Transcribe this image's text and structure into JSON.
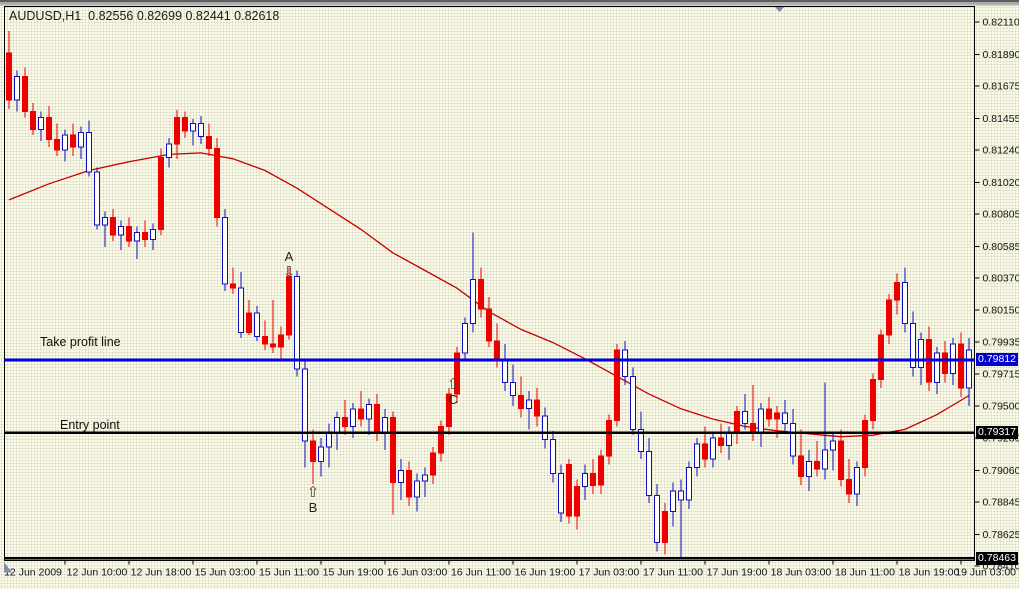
{
  "chart": {
    "title": "AUDUSD,H1  0.82556 0.82699 0.82441 0.82618"
  },
  "chart_data": {
    "type": "candlestick",
    "symbol": "AUDUSD",
    "timeframe": "H1",
    "ohlc_display": {
      "open": "0.82556",
      "high": "0.82699",
      "low": "0.82441",
      "close": "0.82618"
    },
    "y_axis": {
      "min": 0.7841,
      "max": 0.8211,
      "labels": [
        "0.82110",
        "0.81890",
        "0.81675",
        "0.81455",
        "0.81240",
        "0.81020",
        "0.80805",
        "0.80585",
        "0.80370",
        "0.80150",
        "0.79935",
        "0.79715",
        "0.79500",
        "0.79280",
        "0.79060",
        "0.78845",
        "0.78625",
        "0.78410"
      ]
    },
    "x_axis": {
      "labels": [
        "12 Jun 2009",
        "12 Jun 10:00",
        "12 Jun 18:00",
        "15 Jun 03:00",
        "15 Jun 11:00",
        "15 Jun 19:00",
        "16 Jun 03:00",
        "16 Jun 11:00",
        "16 Jun 19:00",
        "17 Jun 03:00",
        "17 Jun 11:00",
        "17 Jun 19:00",
        "18 Jun 03:00",
        "18 Jun 11:00",
        "18 Jun 19:00",
        "19 Jun 03:00"
      ]
    },
    "hlines": [
      {
        "label": "Take profit line",
        "price": 0.79812,
        "badge": "0.79812",
        "color": "#0000e0",
        "width": 3
      },
      {
        "label": "Entry point",
        "price": 0.79317,
        "badge": "0.79317",
        "color": "#000000",
        "width": 2.5
      },
      {
        "label": "",
        "price": 0.78463,
        "badge": "0.78463",
        "color": "#000000",
        "width": 2.5
      }
    ],
    "annotations": [
      {
        "letter": "A",
        "direction": "down",
        "glyph": "⇩",
        "candle_index": 35,
        "price": 0.8041
      },
      {
        "letter": "B",
        "direction": "up",
        "glyph": "⇧",
        "candle_index": 38,
        "price": 0.78905
      },
      {
        "letter": "C",
        "direction": "up",
        "glyph": "⇧",
        "candle_index": 55.5,
        "price": 0.79645
      }
    ],
    "ma": {
      "name": "moving average",
      "points": [
        [
          0,
          0.809
        ],
        [
          5,
          0.8101
        ],
        [
          10,
          0.811
        ],
        [
          15,
          0.8116
        ],
        [
          20,
          0.8121
        ],
        [
          24,
          0.8122
        ],
        [
          28,
          0.8118
        ],
        [
          32,
          0.811
        ],
        [
          36,
          0.8098
        ],
        [
          40,
          0.8084
        ],
        [
          44,
          0.807
        ],
        [
          48,
          0.8054
        ],
        [
          52,
          0.8042
        ],
        [
          56,
          0.803
        ],
        [
          60,
          0.8014
        ],
        [
          64,
          0.8002
        ],
        [
          68,
          0.7993
        ],
        [
          72,
          0.7982
        ],
        [
          76,
          0.797
        ],
        [
          80,
          0.7958
        ],
        [
          84,
          0.7948
        ],
        [
          88,
          0.7941
        ],
        [
          92,
          0.7936
        ],
        [
          96,
          0.7933
        ],
        [
          100,
          0.7931
        ],
        [
          104,
          0.7929
        ],
        [
          108,
          0.793
        ],
        [
          112,
          0.7934
        ],
        [
          116,
          0.7944
        ],
        [
          120,
          0.7957
        ]
      ]
    },
    "candles": [
      [
        0.819,
        0.8205,
        0.8152,
        0.8158,
        "r"
      ],
      [
        0.8158,
        0.8178,
        0.815,
        0.8174,
        "b"
      ],
      [
        0.8174,
        0.818,
        0.8146,
        0.815,
        "r"
      ],
      [
        0.815,
        0.8156,
        0.8134,
        0.8138,
        "r"
      ],
      [
        0.8138,
        0.815,
        0.813,
        0.8146,
        "b"
      ],
      [
        0.8146,
        0.8154,
        0.8126,
        0.8131,
        "r"
      ],
      [
        0.8131,
        0.8142,
        0.812,
        0.8124,
        "r"
      ],
      [
        0.8124,
        0.8138,
        0.8116,
        0.8134,
        "b"
      ],
      [
        0.8134,
        0.8142,
        0.812,
        0.8126,
        "r"
      ],
      [
        0.8126,
        0.814,
        0.8118,
        0.8136,
        "b"
      ],
      [
        0.8136,
        0.8144,
        0.8106,
        0.8109,
        "b"
      ],
      [
        0.8109,
        0.8112,
        0.807,
        0.8073,
        "b"
      ],
      [
        0.8073,
        0.8082,
        0.8058,
        0.8078,
        "b"
      ],
      [
        0.8078,
        0.8084,
        0.8062,
        0.8066,
        "r"
      ],
      [
        0.8066,
        0.8076,
        0.8056,
        0.8072,
        "b"
      ],
      [
        0.8072,
        0.8078,
        0.8058,
        0.8062,
        "r"
      ],
      [
        0.8062,
        0.8072,
        0.805,
        0.8068,
        "b"
      ],
      [
        0.8068,
        0.8076,
        0.8058,
        0.8063,
        "r"
      ],
      [
        0.8063,
        0.8074,
        0.8056,
        0.807,
        "b"
      ],
      [
        0.807,
        0.8125,
        0.8066,
        0.8119,
        "r"
      ],
      [
        0.8119,
        0.8132,
        0.8112,
        0.8128,
        "b"
      ],
      [
        0.8128,
        0.8151,
        0.8118,
        0.8146,
        "r"
      ],
      [
        0.8146,
        0.815,
        0.8132,
        0.8137,
        "r"
      ],
      [
        0.8137,
        0.8145,
        0.8127,
        0.8142,
        "b"
      ],
      [
        0.8142,
        0.8147,
        0.8128,
        0.8133,
        "b"
      ],
      [
        0.8133,
        0.8142,
        0.812,
        0.8125,
        "r"
      ],
      [
        0.8125,
        0.8132,
        0.8072,
        0.8078,
        "r"
      ],
      [
        0.8078,
        0.8084,
        0.8028,
        0.8033,
        "b"
      ],
      [
        0.8033,
        0.8044,
        0.8026,
        0.803,
        "r"
      ],
      [
        0.803,
        0.8041,
        0.7996,
        0.8,
        "b"
      ],
      [
        0.8,
        0.8022,
        0.7998,
        0.8013,
        "r"
      ],
      [
        0.8013,
        0.8018,
        0.7994,
        0.7997,
        "b"
      ],
      [
        0.7997,
        0.8008,
        0.7988,
        0.7992,
        "r"
      ],
      [
        0.7992,
        0.8022,
        0.7986,
        0.799,
        "r"
      ],
      [
        0.799,
        0.8004,
        0.7982,
        0.7998,
        "r"
      ],
      [
        0.7998,
        0.8044,
        0.7995,
        0.8038,
        "r"
      ],
      [
        0.8038,
        0.8042,
        0.797,
        0.7975,
        "b"
      ],
      [
        0.7975,
        0.798,
        0.7908,
        0.7926,
        "b"
      ],
      [
        0.7926,
        0.7934,
        0.7897,
        0.7912,
        "r"
      ],
      [
        0.7912,
        0.7928,
        0.7902,
        0.7922,
        "b"
      ],
      [
        0.7922,
        0.7938,
        0.7908,
        0.7932,
        "b"
      ],
      [
        0.7932,
        0.7946,
        0.792,
        0.7942,
        "b"
      ],
      [
        0.7942,
        0.7954,
        0.793,
        0.7936,
        "r"
      ],
      [
        0.7936,
        0.7952,
        0.7928,
        0.7948,
        "b"
      ],
      [
        0.7948,
        0.796,
        0.7936,
        0.7941,
        "r"
      ],
      [
        0.7941,
        0.7955,
        0.793,
        0.7951,
        "b"
      ],
      [
        0.7951,
        0.7958,
        0.7926,
        0.7932,
        "r"
      ],
      [
        0.7932,
        0.7948,
        0.792,
        0.7942,
        "b"
      ],
      [
        0.7942,
        0.7946,
        0.7876,
        0.7898,
        "r"
      ],
      [
        0.7898,
        0.7914,
        0.7886,
        0.7906,
        "b"
      ],
      [
        0.7906,
        0.7912,
        0.7882,
        0.7888,
        "r"
      ],
      [
        0.7888,
        0.7904,
        0.7878,
        0.7899,
        "b"
      ],
      [
        0.7899,
        0.7908,
        0.7888,
        0.7903,
        "b"
      ],
      [
        0.7903,
        0.7922,
        0.7897,
        0.7918,
        "r"
      ],
      [
        0.7918,
        0.794,
        0.7912,
        0.7936,
        "r"
      ],
      [
        0.7936,
        0.7962,
        0.793,
        0.7958,
        "r"
      ],
      [
        0.7958,
        0.799,
        0.7952,
        0.7986,
        "r"
      ],
      [
        0.7986,
        0.801,
        0.798,
        0.8006,
        "b"
      ],
      [
        0.8006,
        0.8068,
        0.8,
        0.8036,
        "b"
      ],
      [
        0.8036,
        0.8044,
        0.801,
        0.8016,
        "r"
      ],
      [
        0.8016,
        0.8024,
        0.799,
        0.7994,
        "r"
      ],
      [
        0.7994,
        0.8006,
        0.7976,
        0.7982,
        "r"
      ],
      [
        0.7982,
        0.7992,
        0.796,
        0.7966,
        "b"
      ],
      [
        0.7966,
        0.7978,
        0.795,
        0.7957,
        "b"
      ],
      [
        0.7957,
        0.797,
        0.7942,
        0.7948,
        "r"
      ],
      [
        0.7948,
        0.796,
        0.7934,
        0.7954,
        "b"
      ],
      [
        0.7954,
        0.7962,
        0.7936,
        0.7943,
        "r"
      ],
      [
        0.7943,
        0.7949,
        0.7921,
        0.7927,
        "b"
      ],
      [
        0.7927,
        0.7933,
        0.7898,
        0.7904,
        "b"
      ],
      [
        0.7904,
        0.791,
        0.7871,
        0.7877,
        "b"
      ],
      [
        0.791,
        0.7914,
        0.787,
        0.7875,
        "r"
      ],
      [
        0.7875,
        0.79,
        0.7866,
        0.7895,
        "r"
      ],
      [
        0.7895,
        0.791,
        0.7886,
        0.7904,
        "b"
      ],
      [
        0.7904,
        0.7914,
        0.789,
        0.7896,
        "r"
      ],
      [
        0.7896,
        0.792,
        0.789,
        0.7916,
        "r"
      ],
      [
        0.7916,
        0.7944,
        0.791,
        0.794,
        "r"
      ],
      [
        0.794,
        0.7992,
        0.7936,
        0.7988,
        "r"
      ],
      [
        0.7988,
        0.7994,
        0.7964,
        0.797,
        "b"
      ],
      [
        0.797,
        0.7976,
        0.793,
        0.7934,
        "b"
      ],
      [
        0.7934,
        0.7946,
        0.7914,
        0.7919,
        "b"
      ],
      [
        0.7919,
        0.7928,
        0.7884,
        0.7889,
        "b"
      ],
      [
        0.7889,
        0.7897,
        0.7851,
        0.7857,
        "b"
      ],
      [
        0.7857,
        0.7884,
        0.7849,
        0.7878,
        "r"
      ],
      [
        0.7878,
        0.7898,
        0.7868,
        0.7892,
        "b"
      ],
      [
        0.7892,
        0.79,
        0.7847,
        0.7886,
        "b"
      ],
      [
        0.7886,
        0.7912,
        0.788,
        0.7908,
        "b"
      ],
      [
        0.7908,
        0.7928,
        0.7902,
        0.7924,
        "b"
      ],
      [
        0.7924,
        0.7936,
        0.7908,
        0.7914,
        "r"
      ],
      [
        0.7914,
        0.7932,
        0.7908,
        0.7928,
        "b"
      ],
      [
        0.7928,
        0.7938,
        0.7918,
        0.7923,
        "r"
      ],
      [
        0.7923,
        0.7936,
        0.7913,
        0.7932,
        "b"
      ],
      [
        0.7932,
        0.795,
        0.7924,
        0.7946,
        "r"
      ],
      [
        0.7946,
        0.7958,
        0.7934,
        0.7938,
        "b"
      ],
      [
        0.7938,
        0.7964,
        0.7926,
        0.7932,
        "r"
      ],
      [
        0.7932,
        0.7952,
        0.7922,
        0.7948,
        "b"
      ],
      [
        0.7948,
        0.7956,
        0.7936,
        0.7941,
        "r"
      ],
      [
        0.7941,
        0.795,
        0.7928,
        0.7945,
        "r"
      ],
      [
        0.7945,
        0.7954,
        0.7932,
        0.7938,
        "b"
      ],
      [
        0.7938,
        0.7948,
        0.791,
        0.7916,
        "b"
      ],
      [
        0.7916,
        0.7934,
        0.7896,
        0.7902,
        "r"
      ],
      [
        0.7902,
        0.792,
        0.7892,
        0.7912,
        "b"
      ],
      [
        0.7912,
        0.7926,
        0.7902,
        0.7907,
        "r"
      ],
      [
        0.7907,
        0.7966,
        0.79,
        0.792,
        "b"
      ],
      [
        0.792,
        0.7932,
        0.7906,
        0.7926,
        "b"
      ],
      [
        0.7926,
        0.7934,
        0.7895,
        0.79,
        "r"
      ],
      [
        0.79,
        0.7914,
        0.7884,
        0.789,
        "r"
      ],
      [
        0.789,
        0.7912,
        0.7882,
        0.7908,
        "b"
      ],
      [
        0.7908,
        0.7944,
        0.7902,
        0.794,
        "r"
      ],
      [
        0.794,
        0.7972,
        0.7934,
        0.7968,
        "r"
      ],
      [
        0.7968,
        0.8002,
        0.7962,
        0.7998,
        "r"
      ],
      [
        0.7998,
        0.8026,
        0.7992,
        0.8022,
        "r"
      ],
      [
        0.8022,
        0.804,
        0.8012,
        0.8034,
        "r"
      ],
      [
        0.8034,
        0.8044,
        0.8,
        0.8006,
        "b"
      ],
      [
        0.8006,
        0.8014,
        0.797,
        0.7976,
        "b"
      ],
      [
        0.7976,
        0.8,
        0.7964,
        0.7995,
        "b"
      ],
      [
        0.7995,
        0.8004,
        0.796,
        0.7966,
        "r"
      ],
      [
        0.7966,
        0.799,
        0.7958,
        0.7986,
        "b"
      ],
      [
        0.7986,
        0.7994,
        0.7966,
        0.7972,
        "r"
      ],
      [
        0.7972,
        0.7996,
        0.7964,
        0.7992,
        "b"
      ],
      [
        0.7992,
        0.8,
        0.7956,
        0.7962,
        "r"
      ],
      [
        0.7962,
        0.7996,
        0.795,
        0.7988,
        "b"
      ]
    ],
    "colors": {
      "bull_border": "#0f0fc0",
      "bull_fill": "#ffffff",
      "bear": "#ed0000",
      "ma": "#c80000",
      "tp_line": "#0000e0",
      "entry_line": "#000000",
      "bid_line": "#000000",
      "badge_tp_bg": "#0000d0",
      "badge_dark_bg": "#000000",
      "background": "#fbfbe9",
      "frame": "#000000"
    }
  }
}
